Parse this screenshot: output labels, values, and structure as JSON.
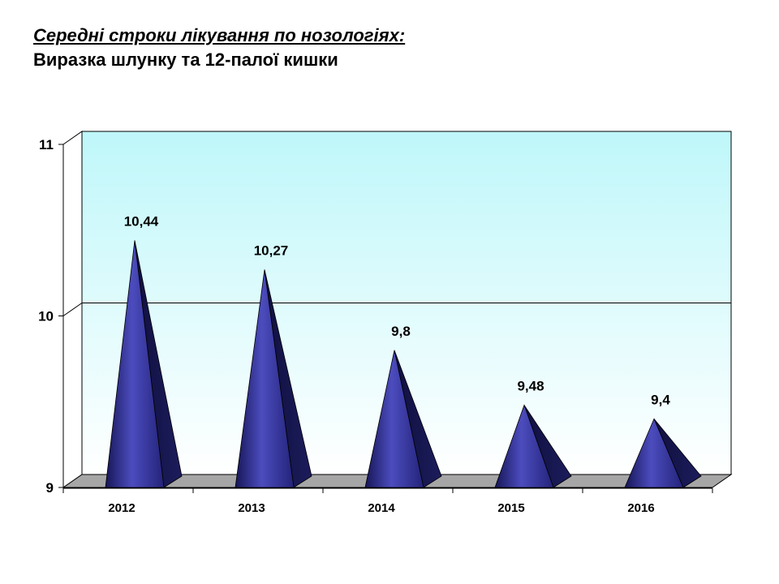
{
  "header": {
    "title": "Середні строки лікування по нозологіях:",
    "subtitle": "Виразка шлунку та 12-палої кишки"
  },
  "colors": {
    "wall_top": "#bff7fa",
    "wall_bottom": "#ffffff",
    "floor": "#a6a6a6",
    "cone_light": "#4c4cbe",
    "cone_dark": "#111144"
  },
  "chart_data": {
    "type": "bar",
    "bar_shape": "cone-3d",
    "categories": [
      "2012",
      "2013",
      "2014",
      "2015",
      "2016"
    ],
    "values": [
      10.44,
      10.27,
      9.8,
      9.48,
      9.4
    ],
    "value_labels": [
      "10,44",
      "10,27",
      "9,8",
      "9,48",
      "9,4"
    ],
    "y_ticks": [
      "9",
      "10",
      "11"
    ],
    "ylim": [
      9,
      11
    ],
    "grid": "horizontal at 10",
    "legend": "none"
  }
}
